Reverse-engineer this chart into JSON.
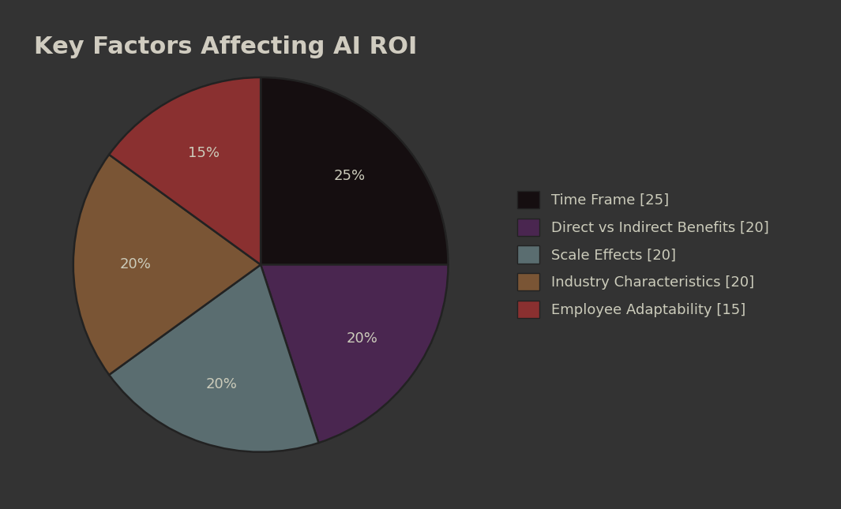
{
  "title": "Key Factors Affecting AI ROI",
  "title_fontsize": 22,
  "title_color": "#d0ccc0",
  "background_color": "#333333",
  "labels": [
    "Time Frame [25]",
    "Direct vs Indirect Benefits [20]",
    "Scale Effects [20]",
    "Industry Characteristics [20]",
    "Employee Adaptability [15]"
  ],
  "values": [
    25,
    20,
    20,
    20,
    15
  ],
  "colors": [
    "#150e10",
    "#4a2650",
    "#5a6d70",
    "#7a5535",
    "#8a3030"
  ],
  "edge_color": "#222222",
  "text_color": "#ccccbb",
  "legend_fontsize": 13,
  "autopct_fontsize": 13,
  "startangle": 90
}
